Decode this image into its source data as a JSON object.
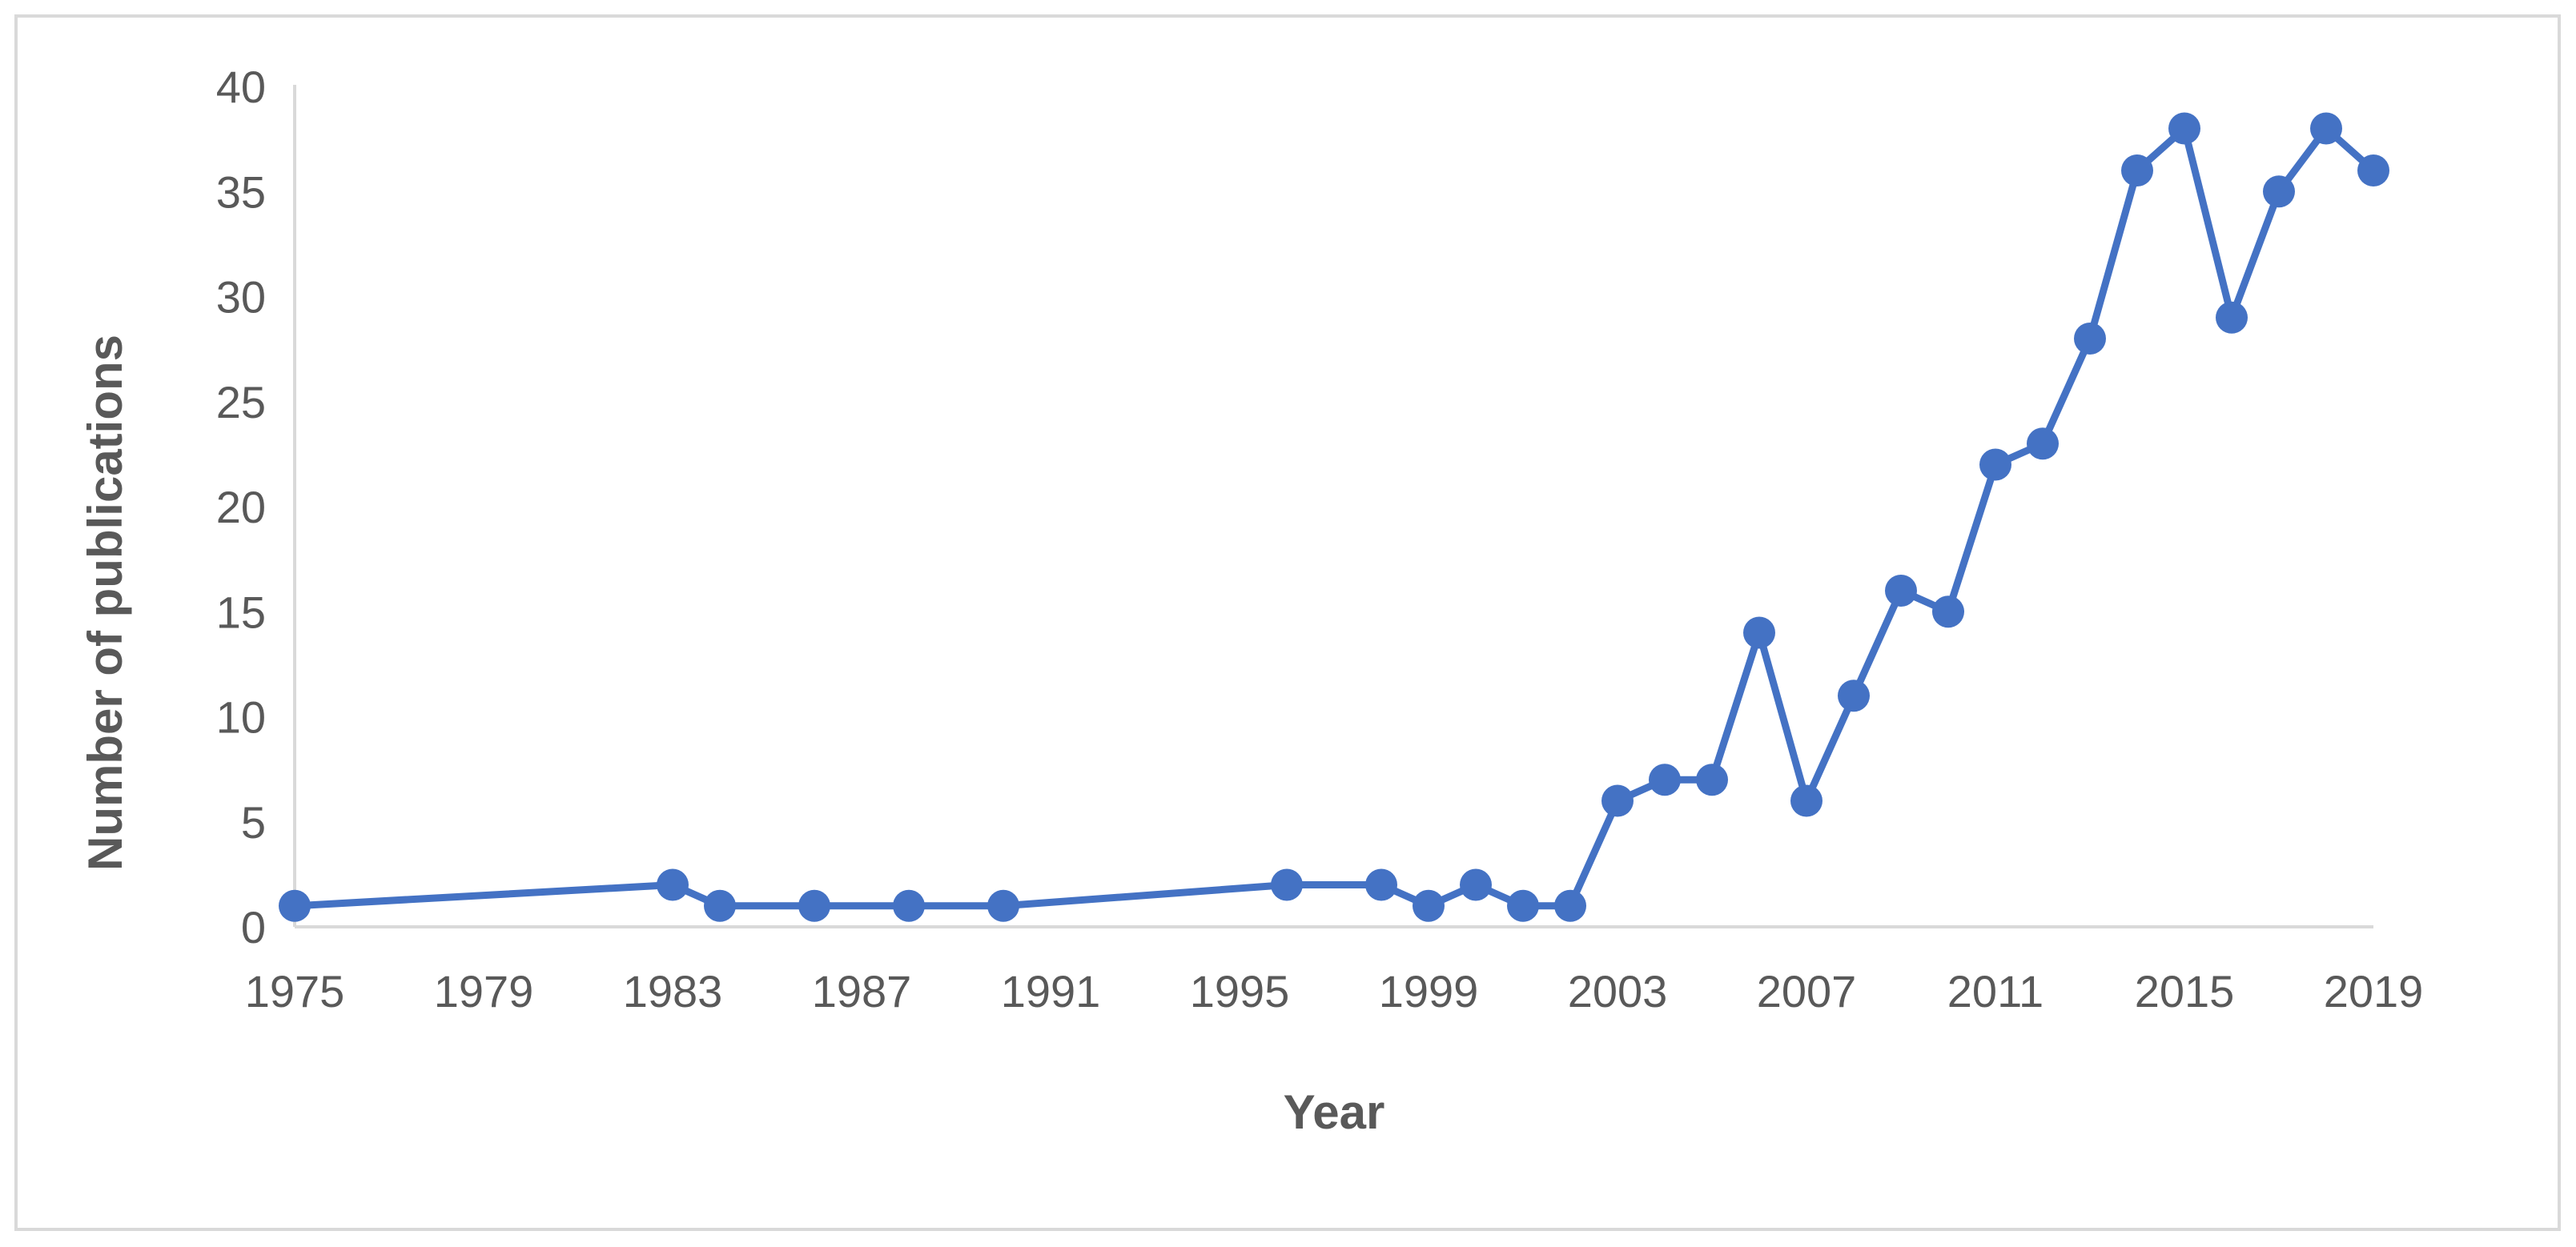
{
  "chart_data": {
    "type": "line",
    "title": "",
    "xlabel": "Year",
    "ylabel": "Number of publications",
    "xlim": [
      1975,
      2019
    ],
    "ylim": [
      0,
      40
    ],
    "x_ticks": [
      "1975",
      "1979",
      "1983",
      "1987",
      "1991",
      "1995",
      "1999",
      "2003",
      "2007",
      "2011",
      "2015",
      "2019"
    ],
    "y_ticks": [
      "0",
      "5",
      "10",
      "15",
      "20",
      "25",
      "30",
      "35",
      "40"
    ],
    "grid": false,
    "legend": "none",
    "series": [
      {
        "color": "#4472c4",
        "marker": "circle",
        "points": [
          {
            "x": 1975,
            "y": 1
          },
          {
            "x": 1983,
            "y": 2
          },
          {
            "x": 1984,
            "y": 1
          },
          {
            "x": 1986,
            "y": 1
          },
          {
            "x": 1988,
            "y": 1
          },
          {
            "x": 1990,
            "y": 1
          },
          {
            "x": 1996,
            "y": 2
          },
          {
            "x": 1998,
            "y": 2
          },
          {
            "x": 1999,
            "y": 1
          },
          {
            "x": 2000,
            "y": 2
          },
          {
            "x": 2001,
            "y": 1
          },
          {
            "x": 2002,
            "y": 1
          },
          {
            "x": 2003,
            "y": 6
          },
          {
            "x": 2004,
            "y": 7
          },
          {
            "x": 2005,
            "y": 7
          },
          {
            "x": 2006,
            "y": 14
          },
          {
            "x": 2007,
            "y": 6
          },
          {
            "x": 2008,
            "y": 11
          },
          {
            "x": 2009,
            "y": 16
          },
          {
            "x": 2010,
            "y": 15
          },
          {
            "x": 2011,
            "y": 22
          },
          {
            "x": 2012,
            "y": 23
          },
          {
            "x": 2013,
            "y": 28
          },
          {
            "x": 2014,
            "y": 36
          },
          {
            "x": 2015,
            "y": 38
          },
          {
            "x": 2016,
            "y": 29
          },
          {
            "x": 2017,
            "y": 35
          },
          {
            "x": 2018,
            "y": 38
          },
          {
            "x": 2019,
            "y": 36
          }
        ]
      }
    ]
  }
}
